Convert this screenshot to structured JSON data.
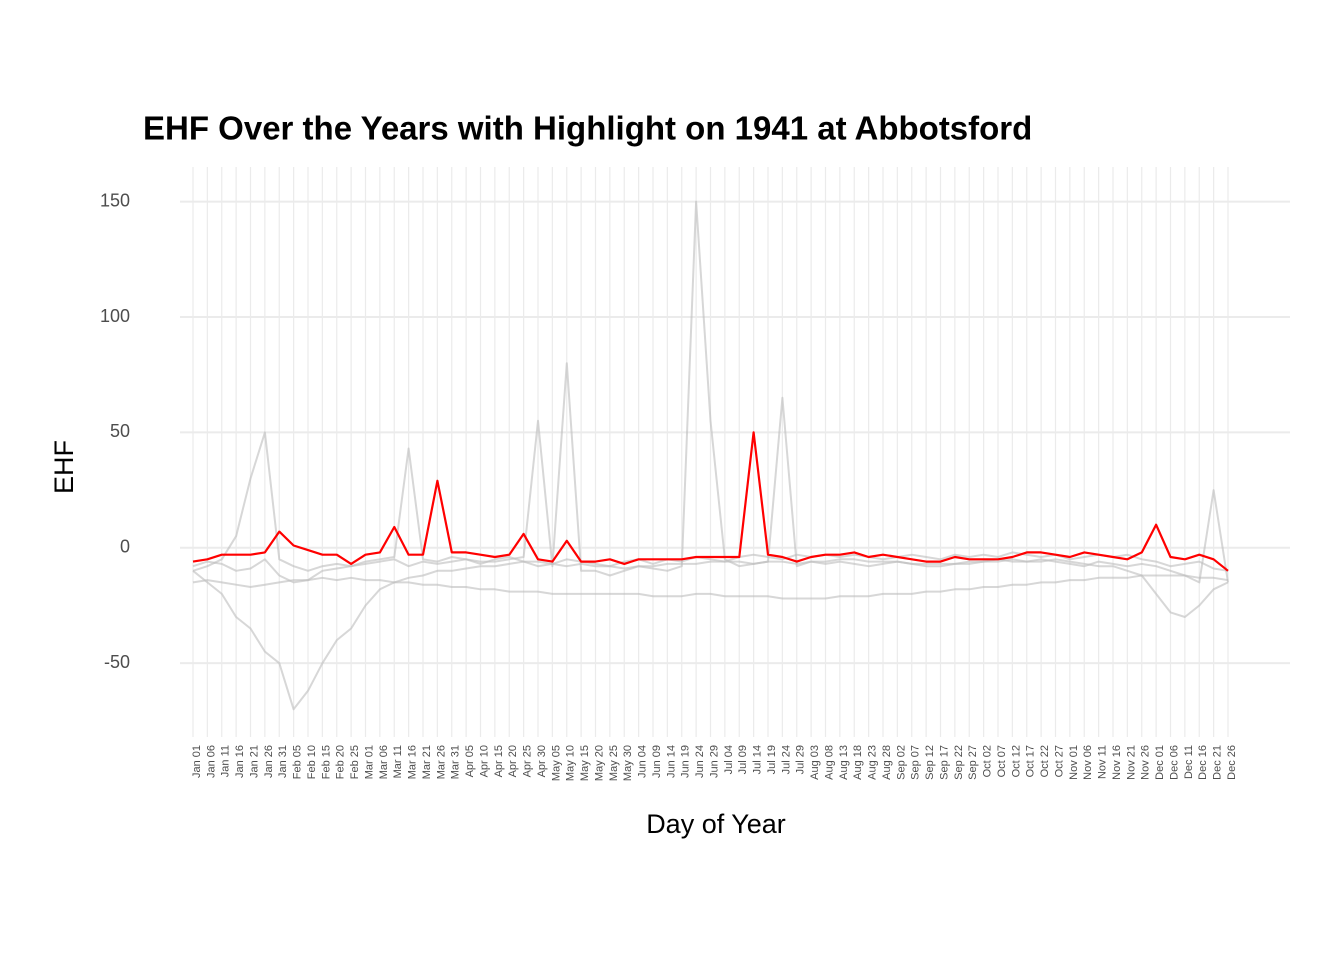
{
  "chart_data": {
    "type": "line",
    "title": "EHF Over the Years with Highlight on 1941 at Abbotsford",
    "x_label": "Day of Year",
    "y_label": "EHF",
    "categories": [
      "Jan 01",
      "Jan 06",
      "Jan 11",
      "Jan 16",
      "Jan 21",
      "Jan 26",
      "Jan 31",
      "Feb 05",
      "Feb 10",
      "Feb 15",
      "Feb 20",
      "Feb 25",
      "Mar 01",
      "Mar 06",
      "Mar 11",
      "Mar 16",
      "Mar 21",
      "Mar 26",
      "Mar 31",
      "Apr 05",
      "Apr 10",
      "Apr 15",
      "Apr 20",
      "Apr 25",
      "Apr 30",
      "May 05",
      "May 10",
      "May 15",
      "May 20",
      "May 25",
      "May 30",
      "Jun 04",
      "Jun 09",
      "Jun 14",
      "Jun 19",
      "Jun 24",
      "Jun 29",
      "Jul 04",
      "Jul 09",
      "Jul 14",
      "Jul 19",
      "Jul 24",
      "Jul 29",
      "Aug 03",
      "Aug 08",
      "Aug 13",
      "Aug 18",
      "Aug 23",
      "Aug 28",
      "Sep 02",
      "Sep 07",
      "Sep 12",
      "Sep 17",
      "Sep 22",
      "Sep 27",
      "Oct 02",
      "Oct 07",
      "Oct 12",
      "Oct 17",
      "Oct 22",
      "Oct 27",
      "Nov 01",
      "Nov 06",
      "Nov 11",
      "Nov 16",
      "Nov 21",
      "Nov 26",
      "Dec 01",
      "Dec 06",
      "Dec 11",
      "Dec 16",
      "Dec 21",
      "Dec 26"
    ],
    "series": [
      {
        "color": "#bdbdbd",
        "values": [
          -10,
          -8,
          -5,
          5,
          30,
          50,
          -5,
          -8,
          -10,
          -8,
          -7,
          -8,
          -6,
          -5,
          -4,
          43,
          -5,
          -6,
          -4,
          -5,
          -6,
          -6,
          -5,
          -4,
          55,
          -8,
          80,
          -10,
          -10,
          -12,
          -10,
          -8,
          -9,
          -10,
          -8,
          150,
          55,
          -5,
          -8,
          -7,
          -6,
          65,
          -8,
          -6,
          -7,
          -6,
          -7,
          -8,
          -7,
          -6,
          -7,
          -8,
          -8,
          -7,
          -7,
          -6,
          -5,
          -6,
          -6,
          -5,
          -6,
          -7,
          -8,
          -6,
          -7,
          -8,
          -7,
          -8,
          -10,
          -12,
          -15,
          25,
          -15
        ]
      },
      {
        "color": "#bdbdbd",
        "values": [
          -10,
          -15,
          -20,
          -30,
          -35,
          -45,
          -50,
          -70,
          -62,
          -50,
          -40,
          -35,
          -25,
          -18,
          -15,
          -13,
          -12,
          -10,
          -10,
          -9,
          -8,
          -8,
          -7,
          -6,
          -6,
          -7,
          -8,
          -7,
          -8,
          -8,
          -9,
          -8,
          -8,
          -7,
          -7,
          -7,
          -6,
          -6,
          -6,
          -7,
          -6,
          -6,
          -7,
          -6,
          -6,
          -5,
          -5,
          -6,
          -6,
          -6,
          -7,
          -7,
          -7,
          -7,
          -6,
          -6,
          -6,
          -5,
          -6,
          -6,
          -5,
          -6,
          -7,
          -8,
          -8,
          -10,
          -12,
          -20,
          -28,
          -30,
          -25,
          -18,
          -15
        ]
      },
      {
        "color": "#bdbdbd",
        "values": [
          -15,
          -14,
          -15,
          -16,
          -17,
          -16,
          -15,
          -14,
          -14,
          -13,
          -14,
          -13,
          -14,
          -14,
          -15,
          -15,
          -16,
          -16,
          -17,
          -17,
          -18,
          -18,
          -19,
          -19,
          -19,
          -20,
          -20,
          -20,
          -20,
          -20,
          -20,
          -20,
          -21,
          -21,
          -21,
          -20,
          -20,
          -21,
          -21,
          -21,
          -21,
          -22,
          -22,
          -22,
          -22,
          -21,
          -21,
          -21,
          -20,
          -20,
          -20,
          -19,
          -19,
          -18,
          -18,
          -17,
          -17,
          -16,
          -16,
          -15,
          -15,
          -14,
          -14,
          -13,
          -13,
          -13,
          -12,
          -12,
          -12,
          -12,
          -13,
          -13,
          -14
        ]
      },
      {
        "color": "#bdbdbd",
        "values": [
          -8,
          -6,
          -7,
          -10,
          -9,
          -5,
          -12,
          -15,
          -14,
          -10,
          -9,
          -8,
          -7,
          -6,
          -5,
          -8,
          -6,
          -7,
          -6,
          -5,
          -7,
          -5,
          -4,
          -6,
          -8,
          -7,
          -5,
          -6,
          -7,
          -8,
          -6,
          -5,
          -7,
          -5,
          -6,
          -4,
          -5,
          -6,
          -4,
          -3,
          -4,
          -5,
          -3,
          -4,
          -3,
          -4,
          -3,
          -4,
          -5,
          -4,
          -3,
          -4,
          -5,
          -3,
          -4,
          -3,
          -4,
          -2,
          -3,
          -4,
          -3,
          -5,
          -4,
          -3,
          -4,
          -3,
          -5,
          -6,
          -8,
          -7,
          -6,
          -9,
          -10
        ]
      },
      {
        "color": "#ff0000",
        "values": [
          -6,
          -5,
          -3,
          -3,
          -3,
          -2,
          7,
          1,
          -1,
          -3,
          -3,
          -7,
          -3,
          -2,
          9,
          -3,
          -3,
          29,
          -2,
          -2,
          -3,
          -4,
          -3,
          6,
          -5,
          -6,
          3,
          -6,
          -6,
          -5,
          -7,
          -5,
          -5,
          -5,
          -5,
          -4,
          -4,
          -4,
          -4,
          50,
          -3,
          -4,
          -6,
          -4,
          -3,
          -3,
          -2,
          -4,
          -3,
          -4,
          -5,
          -6,
          -6,
          -4,
          -5,
          -5,
          -5,
          -4,
          -2,
          -2,
          -3,
          -4,
          -2,
          -3,
          -4,
          -5,
          -2,
          10,
          -4,
          -5,
          -3,
          -5,
          -10
        ]
      }
    ],
    "ylim": [
      -82,
      165
    ],
    "yticks": [
      -50,
      0,
      50,
      100,
      150
    ],
    "grid": true
  }
}
